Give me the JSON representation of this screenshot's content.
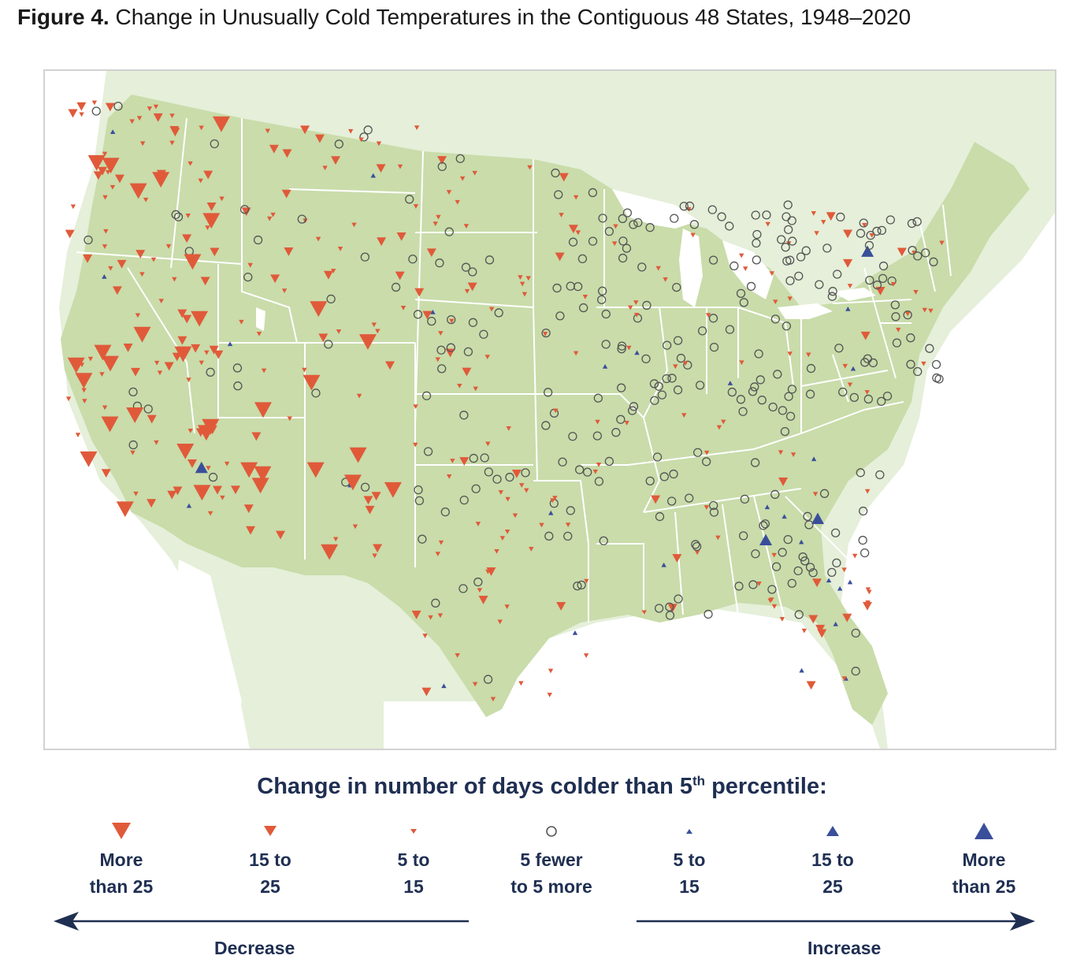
{
  "title": {
    "prefix": "Figure 4.",
    "text": "Change in Unusually Cold Temperatures in the Contiguous 48 States, 1948–2020"
  },
  "colors": {
    "land": "#c9dcaa",
    "surrounding_land": "#e5efd9",
    "water": "#ffffff",
    "boundary": "#ffffff",
    "decrease": "#e05a3a",
    "increase": "#3a4f9a",
    "no_change": "#555555",
    "legend_text": "#1f2f52"
  },
  "legend": {
    "title_before_sup": "Change in number of days colder than 5",
    "title_sup": "th",
    "title_after_sup": " percentile:",
    "items": [
      {
        "line1": "More",
        "line2": "than 25",
        "symbol": "decrease-large"
      },
      {
        "line1": "15 to",
        "line2": "25",
        "symbol": "decrease-medium"
      },
      {
        "line1": "5 to",
        "line2": "15",
        "symbol": "decrease-small"
      },
      {
        "line1": "5 fewer",
        "line2": "to 5 more",
        "symbol": "no-change"
      },
      {
        "line1": "5 to",
        "line2": "15",
        "symbol": "increase-small"
      },
      {
        "line1": "15 to",
        "line2": "25",
        "symbol": "increase-medium"
      },
      {
        "line1": "More",
        "line2": "than 25",
        "symbol": "increase-large"
      }
    ],
    "decrease_label": "Decrease",
    "increase_label": "Increase"
  },
  "station_summary": {
    "description": "Weather stations across the contiguous 48 states",
    "regions": [
      {
        "region": "Pacific coast & California",
        "dominant": "decrease",
        "sizes": [
          "small",
          "medium",
          "large"
        ]
      },
      {
        "region": "Southwest (NV, AZ, UT, NM)",
        "dominant": "decrease",
        "sizes": [
          "small",
          "medium",
          "large"
        ]
      },
      {
        "region": "Northern Rockies & Plains",
        "dominant": "decrease",
        "sizes": [
          "small",
          "medium"
        ]
      },
      {
        "region": "Central Plains & Midwest",
        "dominant": "no-change"
      },
      {
        "region": "Northeast",
        "dominant": "no-change"
      },
      {
        "region": "Southeast",
        "dominant": "mixed"
      },
      {
        "region": "Gulf Coast & Florida",
        "dominant": "mixed",
        "notes": "scattered increases"
      }
    ]
  }
}
